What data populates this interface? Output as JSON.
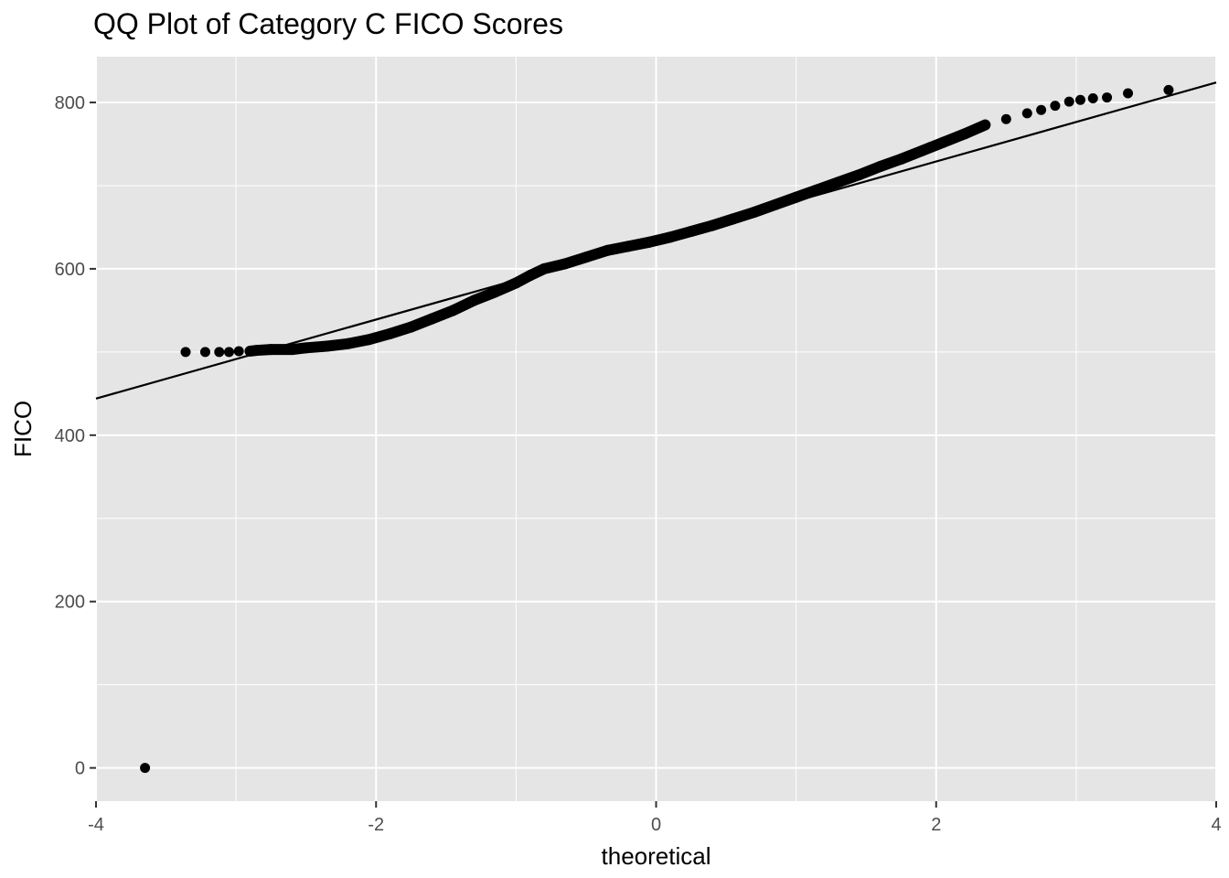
{
  "chart_data": {
    "type": "scatter",
    "title": "QQ Plot of Category C FICO Scores",
    "xlabel": "theoretical",
    "ylabel": "FICO",
    "xlim": [
      -4,
      4
    ],
    "ylim": [
      -40,
      855
    ],
    "xticks": [
      -4,
      -2,
      0,
      2,
      4
    ],
    "yticks": [
      0,
      200,
      400,
      600,
      800
    ],
    "grid": true,
    "background": "#e5e5e5",
    "grid_color": "#ffffff",
    "point_color": "#000000",
    "reference_line": {
      "slope": 47.5,
      "intercept": 634
    },
    "points": [
      [
        -3.65,
        0
      ],
      [
        -3.36,
        500
      ],
      [
        -3.22,
        500
      ],
      [
        -3.12,
        500
      ],
      [
        -3.05,
        500
      ],
      [
        -2.98,
        501
      ],
      [
        -2.9,
        501
      ],
      [
        -2.85,
        502
      ],
      [
        -2.75,
        503
      ],
      [
        -2.6,
        503
      ],
      [
        -2.5,
        505
      ],
      [
        -2.35,
        507
      ],
      [
        -2.2,
        510
      ],
      [
        -2.05,
        515
      ],
      [
        -1.9,
        522
      ],
      [
        -1.75,
        530
      ],
      [
        -1.6,
        540
      ],
      [
        -1.45,
        550
      ],
      [
        -1.3,
        562
      ],
      [
        -1.15,
        572
      ],
      [
        -1.0,
        583
      ],
      [
        -0.9,
        592
      ],
      [
        -0.8,
        600
      ],
      [
        -0.65,
        606
      ],
      [
        -0.5,
        614
      ],
      [
        -0.35,
        622
      ],
      [
        -0.2,
        627
      ],
      [
        -0.05,
        632
      ],
      [
        0.1,
        638
      ],
      [
        0.25,
        645
      ],
      [
        0.4,
        652
      ],
      [
        0.55,
        660
      ],
      [
        0.7,
        668
      ],
      [
        0.85,
        677
      ],
      [
        1.0,
        686
      ],
      [
        1.15,
        695
      ],
      [
        1.3,
        704
      ],
      [
        1.45,
        713
      ],
      [
        1.6,
        723
      ],
      [
        1.75,
        732
      ],
      [
        1.9,
        742
      ],
      [
        2.05,
        752
      ],
      [
        2.2,
        762
      ],
      [
        2.35,
        773
      ],
      [
        2.5,
        780
      ],
      [
        2.65,
        787
      ],
      [
        2.75,
        791
      ],
      [
        2.85,
        796
      ],
      [
        2.95,
        801
      ],
      [
        3.03,
        803
      ],
      [
        3.12,
        805
      ],
      [
        3.22,
        806
      ],
      [
        3.37,
        811
      ],
      [
        3.66,
        815
      ]
    ]
  }
}
